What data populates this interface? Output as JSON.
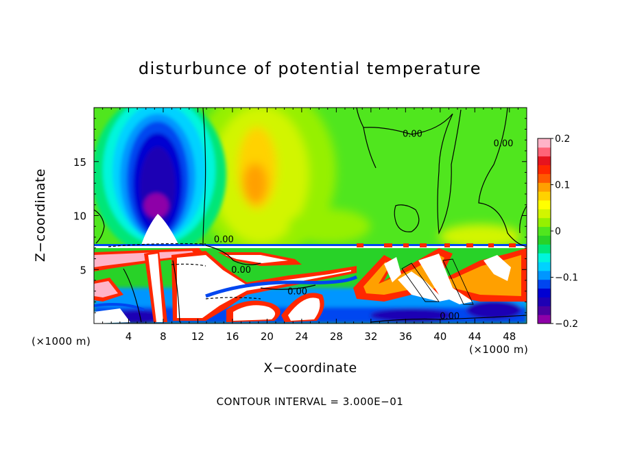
{
  "chart_data": {
    "type": "heatmap",
    "title": "disturbunce of potential temperature",
    "xlabel": "X−coordinate",
    "ylabel": "Z−coordinate",
    "x_unit_left": "(×1000 m)",
    "x_unit_right": "(×1000 m)",
    "footer": "CONTOUR INTERVAL = 3.000E−01",
    "xlim": [
      0,
      50
    ],
    "ylim": [
      0,
      20
    ],
    "x_ticks": [
      "4",
      "8",
      "12",
      "16",
      "20",
      "24",
      "28",
      "32",
      "36",
      "40",
      "44",
      "48"
    ],
    "x_tick_values": [
      4,
      8,
      12,
      16,
      20,
      24,
      28,
      32,
      36,
      40,
      44,
      48
    ],
    "y_ticks": [
      "5",
      "10",
      "15"
    ],
    "y_tick_values": [
      5,
      10,
      15
    ],
    "colorbar": {
      "min": -0.2,
      "max": 0.2,
      "tick_labels": [
        "0.2",
        "0.1",
        "0",
        "−0.1",
        "−0.2"
      ],
      "tick_values": [
        0.2,
        0.1,
        0,
        -0.1,
        -0.2
      ],
      "colors": [
        "#8e00a8",
        "#4b00a0",
        "#1e00b4",
        "#0000d2",
        "#0046f0",
        "#0096ff",
        "#00d2ff",
        "#00f5dc",
        "#00e678",
        "#28d228",
        "#50e61e",
        "#96f000",
        "#d2f500",
        "#ffff00",
        "#ffd200",
        "#ffa000",
        "#ff5a00",
        "#ff2800",
        "#e6141e",
        "#ff6478",
        "#ffb4c8"
      ]
    },
    "contour_labels": [
      {
        "text": "0.00",
        "x": 36.8,
        "z": 17.5
      },
      {
        "text": "0.00",
        "x": 47.3,
        "z": 16.6
      },
      {
        "text": "0.00",
        "x": 15.0,
        "z": 7.7
      },
      {
        "text": "0.00",
        "x": 17.0,
        "z": 4.9
      },
      {
        "text": "0.00",
        "x": 23.5,
        "z": 2.9
      },
      {
        "text": "0.00",
        "x": 41.1,
        "z": 0.6
      }
    ],
    "field_features": [
      {
        "kind": "cold anomaly column",
        "x_center": 7.5,
        "z_top": 20,
        "z_bottom": 7,
        "min_value": -0.2
      },
      {
        "kind": "warm anomaly",
        "x_center": 19,
        "z_center": 13,
        "max_value": 0.12
      },
      {
        "kind": "turbulent layer",
        "z_top": 7.2,
        "z_bottom": 0
      }
    ]
  }
}
